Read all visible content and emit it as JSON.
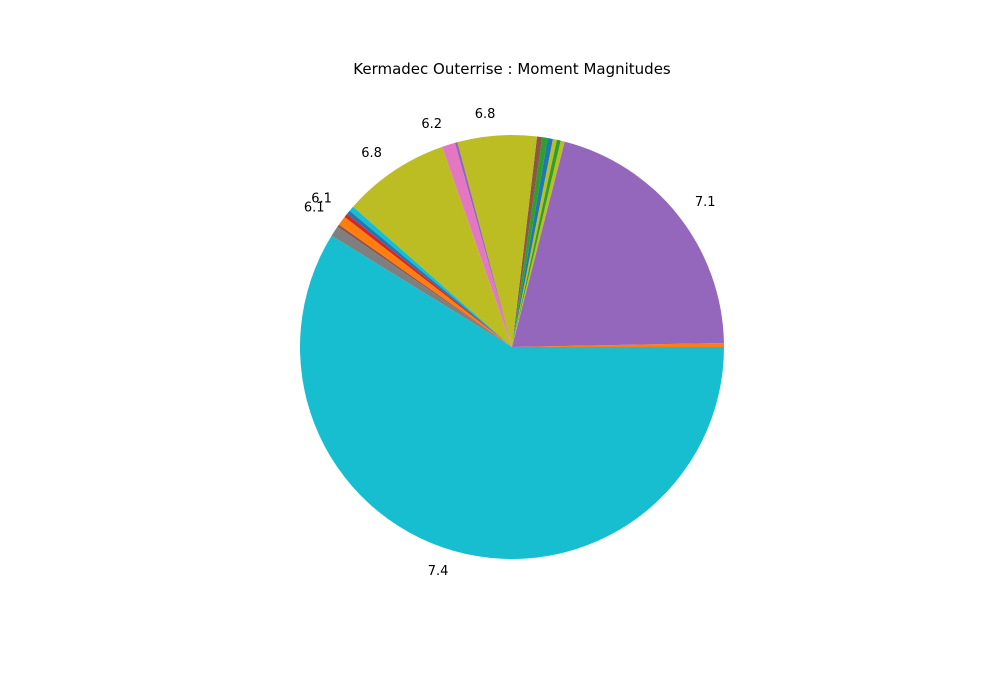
{
  "chart_data": {
    "type": "pie",
    "title": "Kermadec Outerrise : Moment Magnitudes",
    "start_angle_deg": 0,
    "direction": "counterclockwise",
    "slices": [
      {
        "value": 0.3,
        "color": "#ff7f0e",
        "label": ""
      },
      {
        "value": 20.6,
        "color": "#9467bd",
        "label": "7.1"
      },
      {
        "value": 0.3,
        "color": "#bcbd22",
        "label": ""
      },
      {
        "value": 0.3,
        "color": "#2ca02c",
        "label": ""
      },
      {
        "value": 0.3,
        "color": "#bcbd22",
        "label": ""
      },
      {
        "value": 0.4,
        "color": "#1f77b4",
        "label": ""
      },
      {
        "value": 0.4,
        "color": "#2ca02c",
        "label": ""
      },
      {
        "value": 0.4,
        "color": "#8c564b",
        "label": ""
      },
      {
        "value": 6.0,
        "color": "#bcbd22",
        "label": "6.8"
      },
      {
        "value": 0.2,
        "color": "#9467bd",
        "label": ""
      },
      {
        "value": 1.0,
        "color": "#e377c2",
        "label": "6.2"
      },
      {
        "value": 8.1,
        "color": "#bcbd22",
        "label": "6.8"
      },
      {
        "value": 0.4,
        "color": "#17becf",
        "label": ""
      },
      {
        "value": 0.3,
        "color": "#1f77b4",
        "label": "6.1"
      },
      {
        "value": 0.3,
        "color": "#d62728",
        "label": ""
      },
      {
        "value": 0.7,
        "color": "#ff7f0e",
        "label": "6.1"
      },
      {
        "value": 0.2,
        "color": "#8c564b",
        "label": ""
      },
      {
        "value": 0.8,
        "color": "#7f7f7f",
        "label": ""
      },
      {
        "value": 58.5,
        "color": "#17becf",
        "label": "7.4"
      }
    ]
  }
}
